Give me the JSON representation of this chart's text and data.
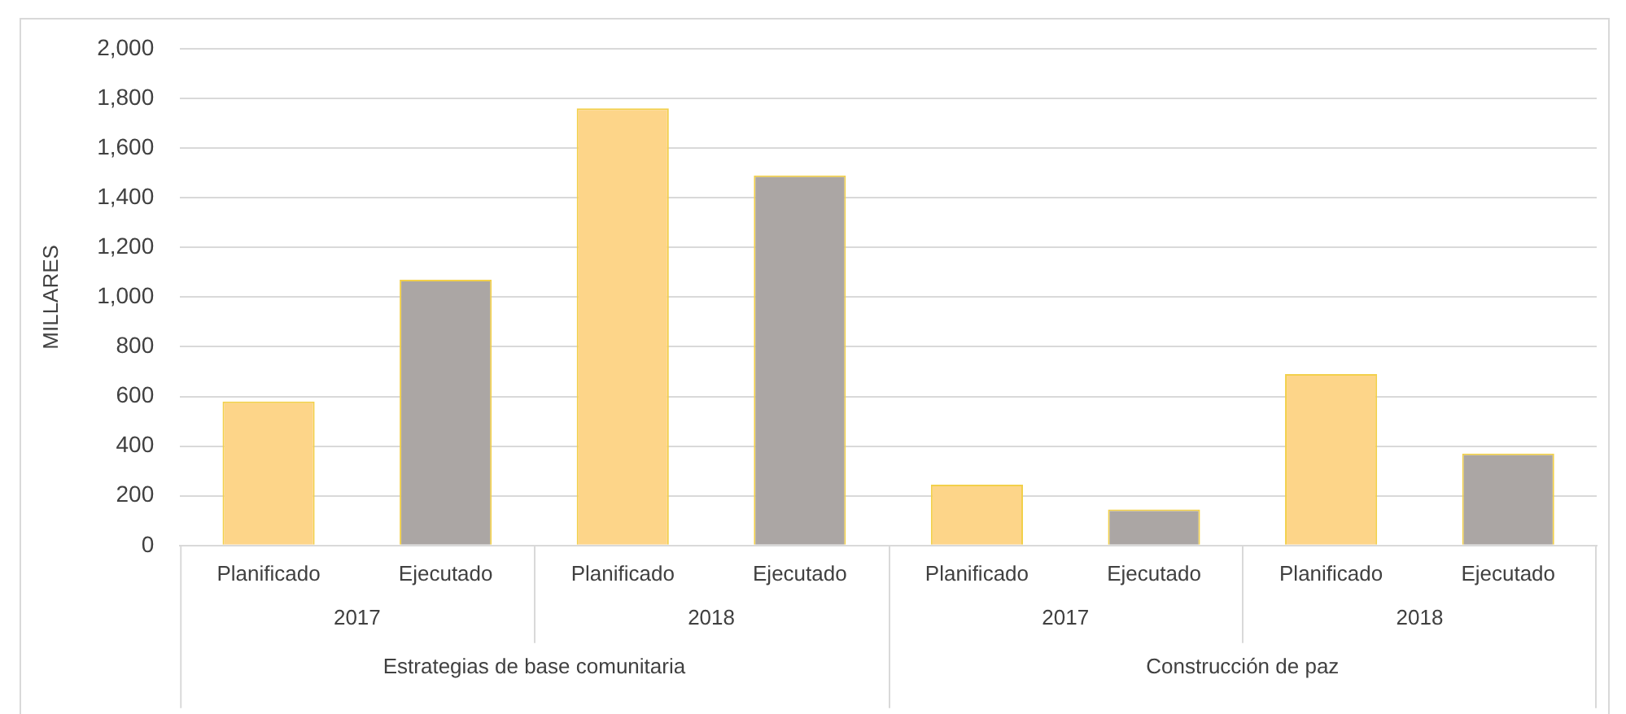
{
  "chart_data": {
    "type": "bar",
    "ylabel": "MILLARES",
    "categories": [
      "Planificado",
      "Ejecutado",
      "Planificado",
      "Ejecutado",
      "Planificado",
      "Ejecutado",
      "Planificado",
      "Ejecutado"
    ],
    "values": [
      580,
      1070,
      1760,
      1490,
      245,
      145,
      690,
      370
    ],
    "colors": [
      "#fdd589",
      "#aba6a4",
      "#fdd589",
      "#aba6a4",
      "#fdd589",
      "#aba6a4",
      "#fdd589",
      "#aba6a4"
    ],
    "ylim": [
      0,
      2000
    ],
    "yticks": [
      0,
      200,
      400,
      600,
      800,
      {
        "value": 1000,
        "label": "1,000"
      },
      {
        "value": 1200,
        "label": "1,200"
      },
      {
        "value": 1400,
        "label": "1,400"
      },
      {
        "value": 1600,
        "label": "1,600"
      },
      {
        "value": 1800,
        "label": "1,800"
      },
      {
        "value": 2000,
        "label": "2,000"
      }
    ],
    "grid": "y",
    "annotations": [
      "2017",
      "2018",
      "2017",
      "2018",
      "Estrategias de base comunitaria",
      "Construcción de paz"
    ]
  }
}
